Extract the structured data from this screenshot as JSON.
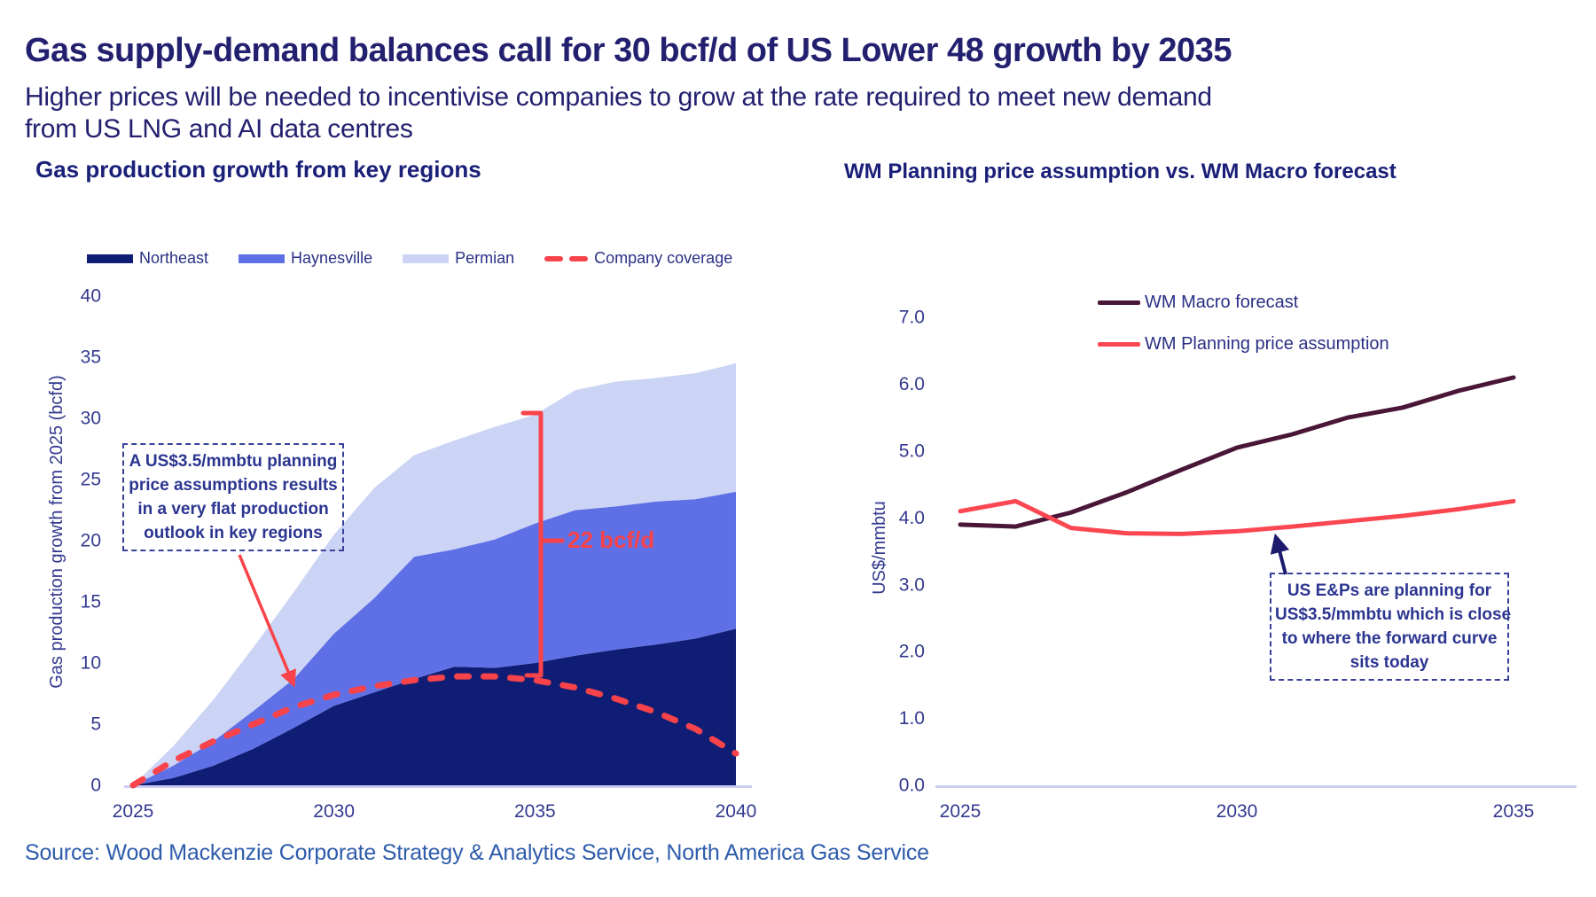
{
  "header": {
    "title": "Gas supply-demand balances call for 30 bcf/d of US Lower 48 growth by 2035",
    "subtitle_lines": [
      "Higher prices will be needed to incentivise companies to grow at the rate required to meet new demand",
      "from US LNG and AI data centres"
    ]
  },
  "source": "Source: Wood Mackenzie Corporate Strategy & Analytics Service, North America Gas Service",
  "colors": {
    "title_navy": "#23206f",
    "chart_title_navy": "#1a2078",
    "axis_navy": "#333a8f",
    "annotation_navy": "#2b3590",
    "source_blue": "#2e5cab",
    "axis_line": "#c9cef2",
    "northeast": "#101d74",
    "haynesville": "#5f70e6",
    "permian": "#ccd4f5",
    "coverage_red": "#f8434a",
    "macro_maroon": "#4a1638",
    "planning_red": "#fb4752"
  },
  "chart_data": [
    {
      "type": "area",
      "title": "Gas production growth from key regions",
      "ylabel": "Gas production growth from 2025 (bcfd)",
      "xlabel": "",
      "ylim": [
        0,
        40
      ],
      "x": [
        2025,
        2026,
        2027,
        2028,
        2029,
        2030,
        2031,
        2032,
        2033,
        2034,
        2035,
        2036,
        2037,
        2038,
        2039,
        2040
      ],
      "x_ticks": [
        "2025",
        "2030",
        "2035",
        "2040"
      ],
      "y_ticks": [
        "0",
        "5",
        "10",
        "15",
        "20",
        "25",
        "30",
        "35",
        "40"
      ],
      "stacked_series": [
        {
          "name": "Northeast",
          "color": "#101d74",
          "values": [
            0,
            0.6,
            1.6,
            3.0,
            4.7,
            6.5,
            7.6,
            8.7,
            9.7,
            9.6,
            10.0,
            10.6,
            11.1,
            11.5,
            12.0,
            12.8
          ]
        },
        {
          "name": "Haynesville",
          "color": "#5f70e6",
          "values": [
            0,
            1.0,
            2.0,
            3.1,
            4.0,
            5.9,
            7.7,
            10.0,
            9.6,
            10.5,
            11.4,
            11.9,
            11.7,
            11.7,
            11.4,
            11.2
          ]
        },
        {
          "name": "Permian",
          "color": "#ccd4f5",
          "values": [
            0,
            1.6,
            3.4,
            5.2,
            7.1,
            8.1,
            9.0,
            8.3,
            8.9,
            9.2,
            8.9,
            9.8,
            10.2,
            10.1,
            10.3,
            10.5
          ]
        }
      ],
      "line_series": [
        {
          "name": "Company coverage",
          "color": "#f8434a",
          "style": "dashed",
          "values": [
            0,
            2.0,
            3.6,
            5.0,
            6.4,
            7.4,
            8.1,
            8.6,
            8.9,
            8.9,
            8.6,
            8.0,
            7.1,
            6.0,
            4.6,
            2.6
          ]
        }
      ],
      "bracket_label": "22 bcf/d",
      "annotation": {
        "lines": [
          "A US$3.5/mmbtu planning",
          "price assumptions results",
          "in a very flat production",
          "outlook in key regions"
        ]
      }
    },
    {
      "type": "line",
      "title": "WM Planning price assumption vs. WM Macro forecast",
      "ylabel": "US$/mmbtu",
      "xlabel": "",
      "ylim": [
        0,
        7
      ],
      "x": [
        2025,
        2026,
        2027,
        2028,
        2029,
        2030,
        2031,
        2032,
        2033,
        2034,
        2035
      ],
      "x_ticks": [
        "2025",
        "2030",
        "2035"
      ],
      "y_ticks": [
        "0.0",
        "1.0",
        "2.0",
        "3.0",
        "4.0",
        "5.0",
        "6.0",
        "7.0"
      ],
      "series": [
        {
          "name": "WM Macro forecast",
          "color": "#4a1638",
          "values": [
            3.9,
            3.87,
            4.08,
            4.38,
            4.72,
            5.05,
            5.25,
            5.5,
            5.65,
            5.9,
            6.1
          ]
        },
        {
          "name": "WM Planning price assumption",
          "color": "#fb4752",
          "values": [
            4.1,
            4.25,
            3.85,
            3.77,
            3.76,
            3.8,
            3.87,
            3.95,
            4.03,
            4.13,
            4.25
          ]
        }
      ],
      "annotation": {
        "lines": [
          "US E&Ps are planning for",
          "US$3.5/mmbtu which is close",
          "to where the forward curve",
          "sits today"
        ]
      }
    }
  ]
}
